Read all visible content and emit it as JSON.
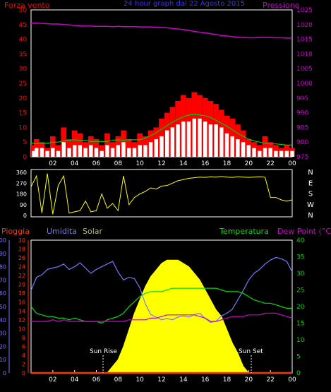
{
  "colors": {
    "background": "#000000",
    "frame": "#ffffff",
    "wind_gust": "#ff0000",
    "wind_avg": "#ffffff",
    "wind_trend": "#00cc00",
    "wind_base": "#ff0000",
    "pressure": "#cc00cc",
    "direction": "#ffff00",
    "humidity": "#7777ff",
    "solar": "#ffff00",
    "rain": "#ff3300",
    "temperature": "#00dd00",
    "dew_point": "#cc00cc",
    "sun_marker": "#ffffff"
  },
  "header": {
    "left_label": "Forza vento",
    "center_title": "24 hour graph dal  22 Agosto 2015",
    "right_label": "Pressione"
  },
  "chart_data": [
    {
      "type": "line",
      "title": "24 hour graph dal  22 Agosto 2015",
      "x_ticks": [
        "02",
        "04",
        "06",
        "08",
        "10",
        "12",
        "14",
        "16",
        "18",
        "20",
        "22",
        "00"
      ],
      "left_axis": {
        "label": "Forza vento",
        "ylim": [
          0,
          50
        ],
        "ticks": [
          "0",
          "5",
          "10",
          "15",
          "20",
          "25",
          "30",
          "35",
          "40",
          "45",
          "50"
        ]
      },
      "right_axis": {
        "label": "Pressione",
        "ylim": [
          975,
          1025
        ],
        "ticks": [
          "975",
          "980",
          "985",
          "990",
          "995",
          "1000",
          "1005",
          "1010",
          "1015",
          "1020",
          "1025"
        ]
      },
      "x_hours": [
        0,
        0.5,
        1,
        1.5,
        2,
        2.5,
        3,
        3.5,
        4,
        4.5,
        5,
        5.5,
        6,
        6.5,
        7,
        7.5,
        8,
        8.5,
        9,
        9.5,
        10,
        10.5,
        11,
        11.5,
        12,
        12.5,
        13,
        13.5,
        14,
        14.5,
        15,
        15.5,
        16,
        16.5,
        17,
        17.5,
        18,
        18.5,
        19,
        19.5,
        20,
        20.5,
        21,
        21.5,
        22,
        22.5,
        23,
        23.5,
        24
      ],
      "series": [
        {
          "name": "Forza vento (raffica)",
          "values": [
            4,
            6,
            5,
            3,
            7,
            4,
            10,
            6,
            9,
            8,
            5,
            7,
            6,
            4,
            8,
            5,
            7,
            9,
            6,
            5,
            8,
            7,
            9,
            10,
            13,
            15,
            17,
            19,
            21,
            20,
            22,
            21,
            20,
            19,
            18,
            16,
            14,
            13,
            11,
            9,
            6,
            5,
            4,
            7,
            5,
            4,
            3,
            4,
            3
          ]
        },
        {
          "name": "Forza vento (media)",
          "values": [
            2,
            3,
            3,
            2,
            3,
            2,
            5,
            3,
            4,
            4,
            3,
            4,
            3,
            2,
            4,
            3,
            4,
            5,
            3,
            3,
            4,
            4,
            5,
            6,
            7,
            9,
            10,
            11,
            12,
            12,
            13,
            13,
            12,
            11,
            11,
            10,
            8,
            7,
            6,
            5,
            4,
            3,
            2,
            3,
            3,
            2,
            2,
            2,
            2
          ]
        },
        {
          "name": "Pressione",
          "values": [
            1020.5,
            1020.5,
            1020.4,
            1020.3,
            1020.2,
            1020.2,
            1020.0,
            1019.9,
            1019.7,
            1019.6,
            1019.5,
            1019.5,
            1019.4,
            1019.4,
            1019.4,
            1019.3,
            1019.4,
            1019.3,
            1019.3,
            1019.3,
            1019.2,
            1019.2,
            1019.2,
            1019.1,
            1019.0,
            1018.9,
            1018.7,
            1018.5,
            1018.3,
            1018.0,
            1017.7,
            1017.4,
            1017.2,
            1016.9,
            1016.6,
            1016.3,
            1016.1,
            1015.9,
            1015.7,
            1015.6,
            1015.5,
            1015.5,
            1015.6,
            1015.6,
            1015.6,
            1015.5,
            1015.5,
            1015.4,
            1015.4
          ]
        }
      ]
    },
    {
      "type": "line",
      "x_ticks": [],
      "left_axis": {
        "ylim": [
          0,
          360
        ],
        "ticks": [
          "0",
          "90",
          "180",
          "270",
          "360"
        ]
      },
      "right_axis": {
        "ticks": [
          "N",
          "W",
          "S",
          "E",
          "N"
        ]
      },
      "x_hours": [
        0,
        0.5,
        1,
        1.5,
        2,
        2.5,
        3,
        3.5,
        4,
        4.5,
        5,
        5.5,
        6,
        6.5,
        7,
        7.5,
        8,
        8.5,
        9,
        9.5,
        10,
        10.5,
        11,
        11.5,
        12,
        12.5,
        13,
        13.5,
        14,
        14.5,
        15,
        15.5,
        16,
        16.5,
        17,
        17.5,
        18,
        18.5,
        19,
        19.5,
        20,
        20.5,
        21,
        21.5,
        22,
        22.5,
        23,
        23.5,
        24
      ],
      "series": [
        {
          "name": "Direzione vento",
          "values": [
            240,
            330,
            20,
            350,
            10,
            250,
            330,
            20,
            30,
            40,
            120,
            30,
            40,
            180,
            60,
            100,
            40,
            330,
            90,
            150,
            180,
            200,
            230,
            220,
            245,
            250,
            270,
            290,
            300,
            310,
            315,
            320,
            318,
            322,
            320,
            325,
            320,
            318,
            322,
            320,
            318,
            320,
            322,
            320,
            150,
            150,
            130,
            120,
            130
          ]
        }
      ]
    },
    {
      "type": "line",
      "x_ticks": [
        "02",
        "04",
        "06",
        "08",
        "10",
        "12",
        "14",
        "16",
        "18",
        "20",
        "22",
        "00"
      ],
      "labels": {
        "rain": "Pioggia",
        "humidity": "Umidita",
        "solar": "Solar",
        "temperature": "Temperatura",
        "dew_point": "Dew Point (°C)"
      },
      "humidity_axis": {
        "ylim": [
          0,
          100
        ],
        "ticks": [
          "0",
          "10",
          "20",
          "30",
          "40",
          "50",
          "60",
          "70",
          "80",
          "90",
          "100"
        ]
      },
      "rain_axis": {
        "ylim": [
          0,
          30
        ],
        "ticks": [
          "0",
          "2",
          "4",
          "6",
          "8",
          "10",
          "12",
          "14",
          "16",
          "18",
          "20",
          "22",
          "24",
          "26",
          "28",
          "30"
        ]
      },
      "temp_axis": {
        "ylim": [
          0,
          40
        ],
        "ticks": [
          "0",
          "5",
          "10",
          "15",
          "20",
          "25",
          "30",
          "35",
          "40"
        ]
      },
      "annotations": [
        "Sun Rise",
        "Sun Set"
      ],
      "x_hours": [
        0,
        0.5,
        1,
        1.5,
        2,
        2.5,
        3,
        3.5,
        4,
        4.5,
        5,
        5.5,
        6,
        6.5,
        7,
        7.5,
        8,
        8.5,
        9,
        9.5,
        10,
        10.5,
        11,
        11.5,
        12,
        12.5,
        13,
        13.5,
        14,
        14.5,
        15,
        15.5,
        16,
        16.5,
        17,
        17.5,
        18,
        18.5,
        19,
        19.5,
        20,
        20.5,
        21,
        21.5,
        22,
        22.5,
        23,
        23.5,
        24
      ],
      "series": [
        {
          "name": "Umidita",
          "values": [
            62,
            72,
            74,
            78,
            79,
            80,
            82,
            78,
            80,
            83,
            79,
            75,
            78,
            80,
            82,
            84,
            76,
            70,
            72,
            71,
            64,
            52,
            44,
            42,
            40,
            41,
            40,
            42,
            43,
            42,
            44,
            45,
            41,
            38,
            39,
            43,
            45,
            48,
            55,
            62,
            70,
            75,
            78,
            82,
            85,
            87,
            86,
            84,
            76
          ]
        },
        {
          "name": "Temperatura",
          "values": [
            20,
            18,
            17.5,
            17,
            17,
            16.5,
            16.5,
            16,
            16.5,
            16,
            15.5,
            15.5,
            15.5,
            15,
            16,
            16.5,
            17,
            18,
            20,
            21.5,
            23,
            24,
            24.5,
            24.5,
            24.5,
            25,
            25.5,
            25.5,
            25.5,
            25.5,
            25.5,
            25.5,
            25.5,
            25.5,
            25.5,
            25,
            24.5,
            24.5,
            24.5,
            24,
            23,
            22,
            21.5,
            21,
            21,
            20.5,
            20,
            19.5,
            19.5
          ]
        },
        {
          "name": "Dew Point",
          "values": [
            15.5,
            15.5,
            15.5,
            15.5,
            16,
            15.5,
            16,
            15.5,
            15.5,
            15.5,
            15.5,
            15.5,
            15.5,
            15.5,
            15.5,
            15.5,
            15.5,
            15.5,
            16,
            16,
            16,
            16,
            16.5,
            16.5,
            17,
            17.5,
            17.5,
            17.5,
            17.5,
            17.5,
            17.5,
            17,
            16.5,
            15.5,
            15.5,
            16,
            16.5,
            17,
            17,
            17,
            17.5,
            17.5,
            17.5,
            18,
            18,
            18,
            17.5,
            17,
            16.5
          ]
        },
        {
          "name": "Solar",
          "values": [
            0,
            0,
            0,
            0,
            0,
            0,
            0,
            0,
            0,
            0,
            0,
            0,
            0,
            0,
            0,
            2,
            4,
            8,
            13,
            18,
            22,
            26,
            29,
            31,
            33,
            34,
            34,
            34,
            33,
            32,
            30,
            28,
            25,
            22,
            19,
            17,
            13,
            9,
            6,
            2,
            0,
            0,
            0,
            0,
            0,
            0,
            0,
            0,
            0
          ]
        },
        {
          "name": "Pioggia",
          "values": [
            0,
            0,
            0,
            0,
            0,
            0,
            0,
            0,
            0,
            0,
            0,
            0,
            0,
            0,
            0,
            0,
            0,
            0,
            0,
            0,
            0,
            0,
            0,
            0,
            0,
            0,
            0,
            0,
            0,
            0,
            0,
            0,
            0,
            0,
            0,
            0,
            0,
            0,
            0,
            0,
            0,
            0,
            0,
            0,
            0,
            0,
            0,
            0,
            0
          ]
        }
      ]
    }
  ]
}
